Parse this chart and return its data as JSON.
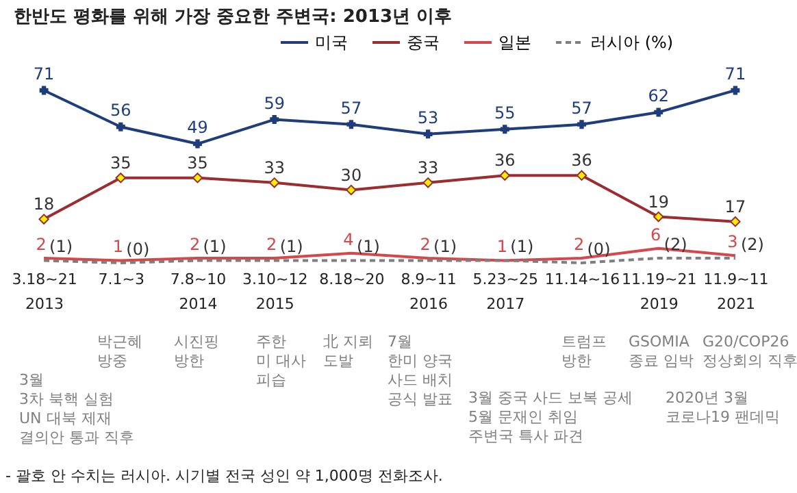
{
  "chart_data": {
    "type": "line",
    "title": "한반도 평화를 위해 가장 중요한 주변국: 2013년 이후",
    "categories": [
      "3.18~21\n2013",
      "7.1~3",
      "7.8~10\n2014",
      "3.10~12\n2015",
      "8.18~20",
      "8.9~11\n2016",
      "5.23~25\n2017",
      "11.14~16",
      "11.19~21\n2019",
      "11.9~11\n2021"
    ],
    "grid": false,
    "legend": "top right",
    "tick_labels": "x",
    "series": [
      {
        "name": "미국",
        "color": "#1f3d7a",
        "marker": "cross",
        "line_style": "solid",
        "values": [
          71,
          56,
          49,
          59,
          57,
          53,
          55,
          57,
          62,
          71
        ],
        "value_labels": [
          "71",
          "56",
          "49",
          "59",
          "57",
          "53",
          "55",
          "57",
          "62",
          "71"
        ]
      },
      {
        "name": "중국",
        "color": "#9b2d30",
        "marker": "diamond",
        "line_style": "solid",
        "values": [
          18,
          35,
          35,
          33,
          30,
          33,
          36,
          36,
          19,
          17
        ],
        "value_labels": [
          "18",
          "35",
          "35",
          "33",
          "30",
          "33",
          "36",
          "36",
          "19",
          "17"
        ]
      },
      {
        "name": "일본",
        "color": "#d4474a",
        "marker": "none",
        "line_style": "solid",
        "values": [
          2,
          1,
          2,
          2,
          4,
          2,
          1,
          2,
          6,
          3
        ],
        "value_labels": [
          "2",
          "1",
          "2",
          "2",
          "4",
          "2",
          "1",
          "2",
          "6",
          "3"
        ]
      },
      {
        "name": "러시아 (%)",
        "color": "#7f7f7f",
        "marker": "none",
        "line_style": "dashed",
        "values": [
          1,
          0,
          1,
          1,
          1,
          1,
          1,
          0,
          2,
          2
        ],
        "value_labels": [
          "(1)",
          "(0)",
          "(1)",
          "(1)",
          "(1)",
          "(1)",
          "(1)",
          "(0)",
          "(2)",
          "(2)"
        ]
      }
    ],
    "annotations": [
      "박근혜\n방중",
      "시진핑\n방한",
      "주한\n미 대사\n피습",
      "北 지뢰\n도발",
      "7월\n한미 양국\n사드 배치\n공식 발표",
      "트럼프\n방한",
      "GSOMIA\n종료 임박",
      "G20/COP26\n정상회의 직후",
      "3월\n3차 북핵 실험\nUN 대북 제재\n결의안 통과 직후",
      "3월 중국 사드 보복 공세\n5월 문재인 취임\n주변국 특사 파견",
      "2020년 3월\n코로나19 팬데믹",
      "- 괄호 안 수치는 러시아. 시기별 전국 성인 약 1,000명 전화조사."
    ]
  }
}
